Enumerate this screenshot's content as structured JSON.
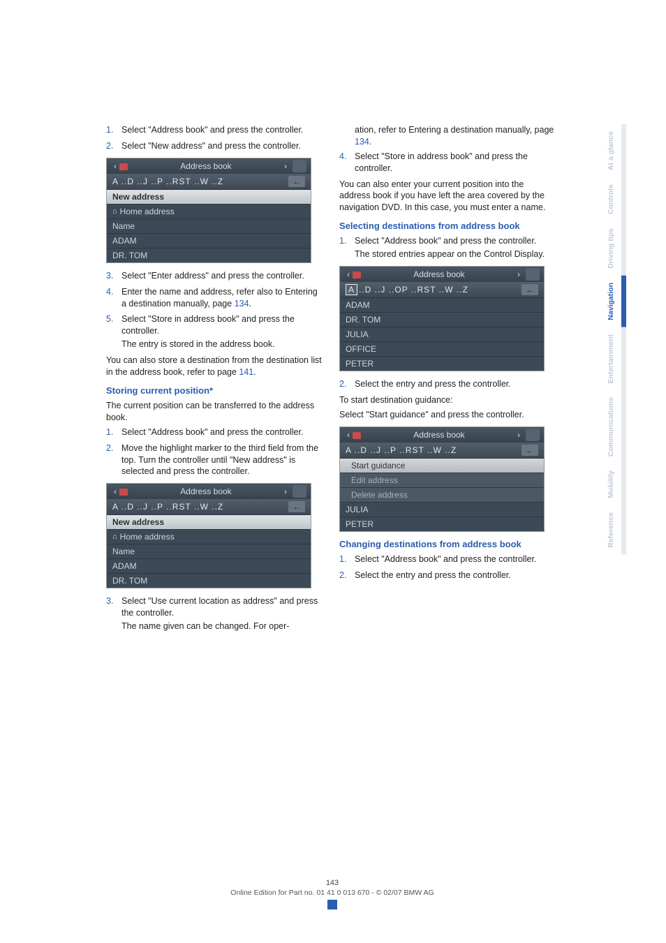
{
  "left": {
    "steps1": [
      {
        "n": "1.",
        "t": "Select \"Address book\" and press the controller."
      },
      {
        "n": "2.",
        "t": "Select \"New address\" and press the controller."
      }
    ],
    "screen1": {
      "title": "Address book",
      "letters": "A ..D ..J ..P ..RST ..W ..Z",
      "rows": [
        {
          "label": "New address",
          "style": "hl"
        },
        {
          "label": "Home address",
          "style": "home"
        },
        {
          "label": "Name",
          "style": "plain"
        },
        {
          "label": "ADAM",
          "style": "plain"
        },
        {
          "label": "DR. TOM",
          "style": "plain"
        }
      ]
    },
    "steps2": [
      {
        "n": "3.",
        "t": "Select \"Enter address\" and press the controller."
      },
      {
        "n": "4.",
        "t": "Enter the name and address, refer also to Entering a destination manually, page ",
        "link": "134",
        "tail": "."
      },
      {
        "n": "5.",
        "t": "Select \"Store in address book\" and press the controller.",
        "extra": "The entry is stored in the address book."
      }
    ],
    "para1": "You can also store a destination from the destination list in the address book, refer to page ",
    "para1_link": "141",
    "para1_tail": ".",
    "subhead1": "Storing current position*",
    "para2": "The current position can be transferred to the address book.",
    "steps3": [
      {
        "n": "1.",
        "t": "Select \"Address book\" and press the controller."
      },
      {
        "n": "2.",
        "t": "Move the highlight marker to the third field from the top. Turn the controller until \"New address\" is selected and press the controller."
      }
    ],
    "screen2": {
      "title": "Address book",
      "letters": "A ..D ..J ..P ..RST ..W ..Z",
      "rows": [
        {
          "label": "New address",
          "style": "hl"
        },
        {
          "label": "Home address",
          "style": "home"
        },
        {
          "label": "Name",
          "style": "plain"
        },
        {
          "label": "ADAM",
          "style": "plain"
        },
        {
          "label": "DR. TOM",
          "style": "plain"
        }
      ]
    },
    "steps4": [
      {
        "n": "3.",
        "t": "Select \"Use current location as address\" and press the controller.",
        "extra": "The name given can be changed. For oper-"
      }
    ]
  },
  "right": {
    "cont1": "ation, refer to Entering a destination manually, page ",
    "cont1_link": "134",
    "cont1_tail": ".",
    "step4": {
      "n": "4.",
      "t": "Select \"Store in address book\" and press the controller."
    },
    "para3": "You can also enter your current position into the address book if you have left the area covered by the navigation DVD. In this case, you must enter a name.",
    "subhead2": "Selecting destinations from address book",
    "steps5": [
      {
        "n": "1.",
        "t": "Select \"Address book\" and press the controller.",
        "extra": "The stored entries appear on the Control Display."
      }
    ],
    "screen3": {
      "title": "Address book",
      "letters": "..D ..J ..OP ..RST ..W ..Z",
      "prefixA": "A",
      "rows": [
        {
          "label": "ADAM"
        },
        {
          "label": "DR. TOM"
        },
        {
          "label": "JULIA"
        },
        {
          "label": "OFFICE"
        },
        {
          "label": "PETER"
        }
      ]
    },
    "steps6": [
      {
        "n": "2.",
        "t": "Select the entry and press the controller."
      }
    ],
    "para4": "To start destination guidance:",
    "para5": "Select \"Start guidance\" and press the controller.",
    "screen4": {
      "title": "Address book",
      "letters": "A ..D ..J ..P ..RST ..W ..Z",
      "rows": [
        {
          "label": "Start guidance",
          "style": "subhl"
        },
        {
          "label": "Edit address",
          "style": "sub"
        },
        {
          "label": "Delete address",
          "style": "sub"
        },
        {
          "label": "JULIA",
          "style": "plain"
        },
        {
          "label": "PETER",
          "style": "plain"
        }
      ]
    },
    "subhead3": "Changing destinations from address book",
    "steps7": [
      {
        "n": "1.",
        "t": "Select \"Address book\" and press the controller."
      },
      {
        "n": "2.",
        "t": "Select the entry and press the controller."
      }
    ]
  },
  "tabs": [
    "At a glance",
    "Controls",
    "Driving tips",
    "Navigation",
    "Entertainment",
    "Communications",
    "Mobility",
    "Reference"
  ],
  "active_tab": 3,
  "footer": {
    "page": "143",
    "line": "Online Edition for Part no. 01 41 0 013 670 - © 02/07 BMW AG"
  }
}
